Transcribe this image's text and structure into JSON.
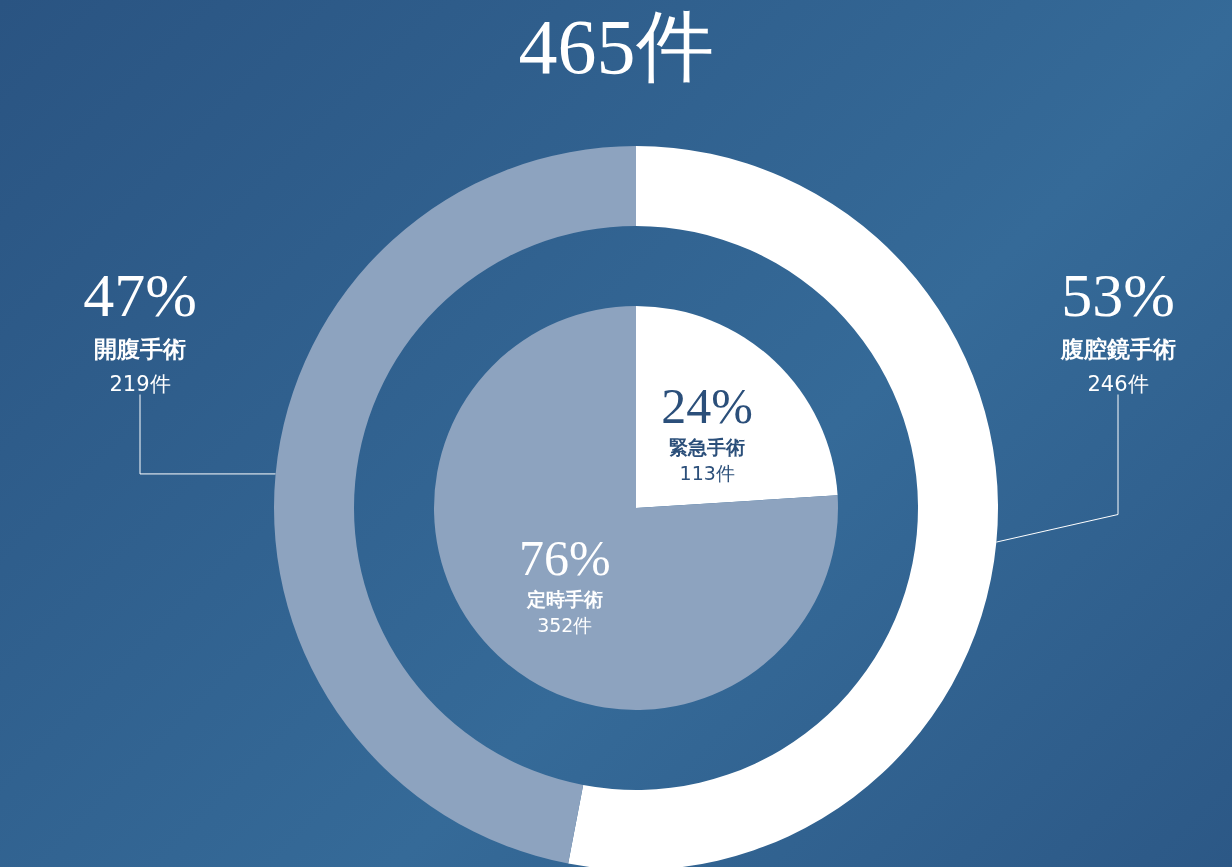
{
  "chart_data": [
    {
      "type": "donut",
      "title": "465件",
      "categories": [
        "腹腔鏡手術",
        "開腹手術"
      ],
      "values": [
        53,
        47
      ],
      "colors": [
        "#ffffff",
        "#8da3bf"
      ],
      "value_labels": [
        "53%",
        "47%"
      ],
      "annotations": [
        {
          "text": "246件",
          "x": "腹腔鏡手術"
        },
        {
          "text": "219件",
          "x": "開腹手術"
        }
      ]
    },
    {
      "type": "pie",
      "categories": [
        "緊急手術",
        "定時手術"
      ],
      "values": [
        24,
        76
      ],
      "colors": [
        "#ffffff",
        "#8da3bf"
      ],
      "value_labels": [
        "24%",
        "76%"
      ],
      "annotations": [
        {
          "text": "113件",
          "x": "緊急手術"
        },
        {
          "text": "352件",
          "x": "定時手術"
        }
      ]
    }
  ]
}
